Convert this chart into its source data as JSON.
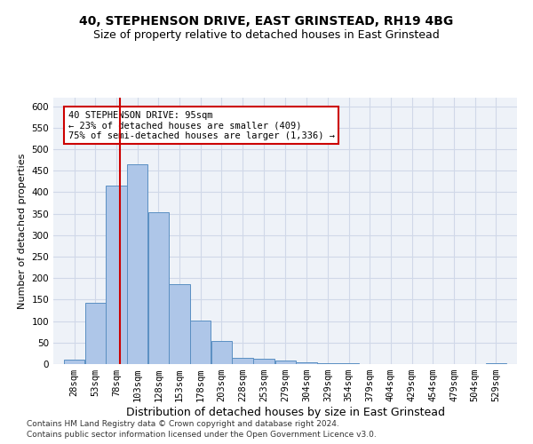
{
  "title1": "40, STEPHENSON DRIVE, EAST GRINSTEAD, RH19 4BG",
  "title2": "Size of property relative to detached houses in East Grinstead",
  "xlabel": "Distribution of detached houses by size in East Grinstead",
  "ylabel": "Number of detached properties",
  "footnote1": "Contains HM Land Registry data © Crown copyright and database right 2024.",
  "footnote2": "Contains public sector information licensed under the Open Government Licence v3.0.",
  "bin_labels": [
    "28sqm",
    "53sqm",
    "78sqm",
    "103sqm",
    "128sqm",
    "153sqm",
    "178sqm",
    "203sqm",
    "228sqm",
    "253sqm",
    "279sqm",
    "304sqm",
    "329sqm",
    "354sqm",
    "379sqm",
    "404sqm",
    "429sqm",
    "454sqm",
    "479sqm",
    "504sqm",
    "529sqm"
  ],
  "bin_edges": [
    28,
    53,
    78,
    103,
    128,
    153,
    178,
    203,
    228,
    253,
    279,
    304,
    329,
    354,
    379,
    404,
    429,
    454,
    479,
    504,
    529,
    554
  ],
  "bar_values": [
    10,
    143,
    415,
    465,
    353,
    185,
    102,
    53,
    15,
    13,
    9,
    5,
    3,
    3,
    0,
    0,
    0,
    0,
    0,
    0,
    3
  ],
  "bar_color": "#aec6e8",
  "bar_edge_color": "#5a8fc2",
  "grid_color": "#d0d8e8",
  "background_color": "#eef2f8",
  "annotation_line1": "40 STEPHENSON DRIVE: 95sqm",
  "annotation_line2": "← 23% of detached houses are smaller (409)",
  "annotation_line3": "75% of semi-detached houses are larger (1,336) →",
  "property_line_x": 95,
  "ylim": [
    0,
    620
  ],
  "yticks": [
    0,
    50,
    100,
    150,
    200,
    250,
    300,
    350,
    400,
    450,
    500,
    550,
    600
  ],
  "bar_color_edge": "#5a8fc2",
  "annotation_box_color": "#ffffff",
  "annotation_box_edge": "#cc0000",
  "vline_color": "#cc0000",
  "title1_fontsize": 10,
  "title2_fontsize": 9,
  "xlabel_fontsize": 9,
  "ylabel_fontsize": 8,
  "tick_fontsize": 7.5,
  "annotation_fontsize": 7.5,
  "footnote_fontsize": 6.5
}
